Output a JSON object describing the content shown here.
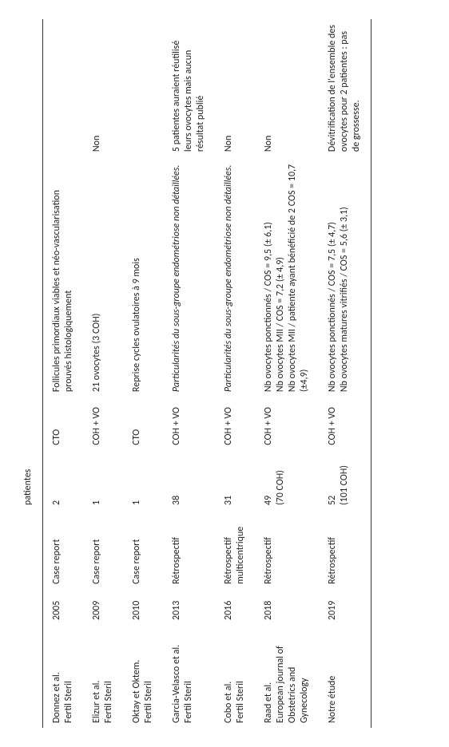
{
  "table": {
    "header": {
      "n_patients": "patientes"
    },
    "rows": [
      {
        "ref_author": "Donnez et al.",
        "ref_journal": "Fertil Steril",
        "year": "2005",
        "study_type": "Case report",
        "n": "2",
        "n_sub": "",
        "technique": "CTO",
        "results": "Follicules primordiaux viables et néo-vascularisation prouvés histologiquement",
        "results_italic": false,
        "reuse": ""
      },
      {
        "ref_author": "Elizur et al.",
        "ref_journal": "Fertil Steril",
        "year": "2009",
        "study_type": "Case report",
        "n": "1",
        "n_sub": "",
        "technique": "COH + VO",
        "results": "21 ovocytes (3 COH)",
        "results_italic": false,
        "reuse": "Non"
      },
      {
        "ref_author": "Oktay et Oktem.",
        "ref_journal": "Fertil Steril",
        "year": "2010",
        "study_type": "Case report",
        "n": "1",
        "n_sub": "",
        "technique": "CTO",
        "results": "Reprise cycles ovulatoires à 9 mois",
        "results_italic": false,
        "reuse": ""
      },
      {
        "ref_author": "Garcia-Velasco et al.",
        "ref_journal": "Fertil Steril",
        "year": "2013",
        "study_type": "Rétrospectif",
        "n": "38",
        "n_sub": "",
        "technique": "COH + VO",
        "results": "Particularités du sous-groupe endométriose non détaillées.",
        "results_italic": true,
        "reuse": "5 patientes auraient réutilisé leurs ovocytes mais aucun résultat publié"
      },
      {
        "ref_author": "Cobo et al.",
        "ref_journal": "Fertil Steril",
        "year": "2016",
        "study_type": "Rétrospectif multicentrique",
        "n": "31",
        "n_sub": "",
        "technique": "COH + VO",
        "results": "Particularités du sous-groupe endométriose non détaillées.",
        "results_italic": true,
        "reuse": "Non"
      },
      {
        "ref_author": "Raad et al.",
        "ref_journal": "European journal of Obstetrics and Gynecology",
        "year": "2018",
        "study_type": "Rétrospectif",
        "n": "49",
        "n_sub": "(70 COH)",
        "technique": "COH + VO",
        "results": "Nb ovocytes ponctionnés / COS = 9,5  (± 6,1)\nNb ovocytes MII / COS = 7,2  (± 4,9)\nNb ovocytes MII / patiente ayant bénéficié de 2 COS = 10,7  (±4,9)",
        "results_italic": false,
        "reuse": "Non"
      },
      {
        "ref_author": "Notre étude",
        "ref_journal": "",
        "year": "2019",
        "study_type": "Rétrospectif",
        "n": "52",
        "n_sub": "(101 COH)",
        "technique": "COH + VO",
        "results": "Nb ovocytes ponctionnés / COS = 7,5 (± 4,7)\nNb ovocytes matures vitrifiés / COS = 5,6 (± 3,1)",
        "results_italic": false,
        "reuse": "Dévitrification de l'ensemble des ovocytes pour 2 patientes : pas de grossesse."
      }
    ]
  }
}
